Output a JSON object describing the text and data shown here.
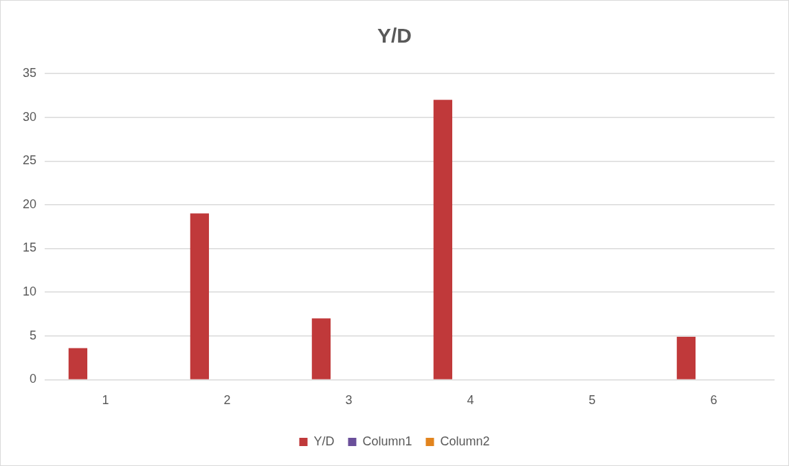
{
  "chart_data": {
    "type": "bar",
    "title": "Y/D",
    "categories": [
      "1",
      "2",
      "3",
      "4",
      "5",
      "6"
    ],
    "series": [
      {
        "name": "Y/D",
        "color": "#c0393a",
        "values": [
          3.6,
          19,
          7,
          32,
          0,
          4.9
        ]
      },
      {
        "name": "Column1",
        "color": "#6a4f9a",
        "values": [
          null,
          null,
          null,
          null,
          null,
          null
        ]
      },
      {
        "name": "Column2",
        "color": "#e2841e",
        "values": [
          null,
          null,
          null,
          null,
          null,
          null
        ]
      }
    ],
    "ylim": [
      0,
      35
    ],
    "yticks": [
      0,
      5,
      10,
      15,
      20,
      25,
      30,
      35
    ],
    "grid": "y",
    "legend": "bottom"
  }
}
